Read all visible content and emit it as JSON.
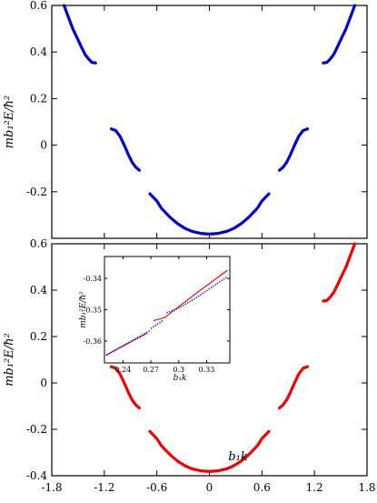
{
  "chart_data": [
    {
      "type": "scatter",
      "panel": "top",
      "ylabel": "mb₁²E/ħ²",
      "xlim": [
        -1.8,
        1.8
      ],
      "ylim": [
        -0.4,
        0.6
      ],
      "xticks": [
        -1.8,
        -1.2,
        -0.6,
        0,
        0.6,
        1.2,
        1.8
      ],
      "yticks": [
        -0.4,
        -0.2,
        0,
        0.2,
        0.4,
        0.6
      ],
      "ytick_labels": [
        "",
        "-0.2",
        "0",
        "0.2",
        "0.4",
        "0.6"
      ],
      "series": [
        {
          "color": "#0000cc",
          "segments": [
            [
              [
                -0.68,
                -0.209
              ],
              [
                -0.6,
                -0.24
              ],
              [
                -0.55,
                -0.27
              ],
              [
                -0.5,
                -0.29
              ],
              [
                -0.44,
                -0.313
              ],
              [
                -0.36,
                -0.338
              ],
              [
                -0.28,
                -0.357
              ],
              [
                -0.2,
                -0.37
              ],
              [
                -0.1,
                -0.379
              ],
              [
                0,
                -0.382
              ],
              [
                0.1,
                -0.379
              ],
              [
                0.2,
                -0.37
              ],
              [
                0.28,
                -0.357
              ],
              [
                0.36,
                -0.338
              ],
              [
                0.44,
                -0.313
              ],
              [
                0.5,
                -0.29
              ],
              [
                0.55,
                -0.27
              ],
              [
                0.6,
                -0.24
              ],
              [
                0.68,
                -0.209
              ]
            ],
            [
              [
                -1.12,
                0.07
              ],
              [
                -1.07,
                0.063
              ],
              [
                -1.02,
                0.038
              ],
              [
                -0.97,
                -0.002
              ],
              [
                -0.92,
                -0.045
              ],
              [
                -0.88,
                -0.075
              ],
              [
                -0.84,
                -0.095
              ],
              [
                -0.8,
                -0.108
              ]
            ],
            [
              [
                0.8,
                -0.108
              ],
              [
                0.84,
                -0.095
              ],
              [
                0.88,
                -0.075
              ],
              [
                0.92,
                -0.045
              ],
              [
                0.97,
                -0.002
              ],
              [
                1.02,
                0.038
              ],
              [
                1.07,
                0.063
              ],
              [
                1.12,
                0.07
              ]
            ],
            [
              [
                -1.66,
                0.6
              ],
              [
                -1.61,
                0.55
              ],
              [
                -1.56,
                0.5
              ],
              [
                -1.51,
                0.46
              ],
              [
                -1.46,
                0.42
              ],
              [
                -1.42,
                0.39
              ],
              [
                -1.38,
                0.37
              ],
              [
                -1.34,
                0.355
              ],
              [
                -1.3,
                0.353
              ]
            ],
            [
              [
                1.3,
                0.353
              ],
              [
                1.34,
                0.355
              ],
              [
                1.38,
                0.37
              ],
              [
                1.42,
                0.39
              ],
              [
                1.46,
                0.42
              ],
              [
                1.51,
                0.46
              ],
              [
                1.56,
                0.5
              ],
              [
                1.61,
                0.55
              ],
              [
                1.66,
                0.6
              ]
            ]
          ]
        }
      ]
    },
    {
      "type": "scatter",
      "panel": "bottom",
      "xlabel": "b₁k",
      "ylabel": "mb₁²E/ħ²",
      "xlim": [
        -1.8,
        1.8
      ],
      "ylim": [
        -0.4,
        0.6
      ],
      "xticks": [
        -1.8,
        -1.2,
        -0.6,
        0,
        0.6,
        1.2,
        1.8
      ],
      "xtick_labels": [
        "-1.8",
        "-1.2",
        "-0.6",
        "0",
        "0.6",
        "1.2",
        "1.8"
      ],
      "yticks": [
        -0.4,
        -0.2,
        0,
        0.2,
        0.4,
        0.6
      ],
      "ytick_labels": [
        "-0.4",
        "-0.2",
        "0",
        "0.2",
        "0.4",
        "0.6"
      ],
      "series": [
        {
          "color": "#ee0000",
          "segments": [
            [
              [
                -0.68,
                -0.209
              ],
              [
                -0.6,
                -0.24
              ],
              [
                -0.55,
                -0.27
              ],
              [
                -0.5,
                -0.29
              ],
              [
                -0.44,
                -0.313
              ],
              [
                -0.36,
                -0.338
              ],
              [
                -0.28,
                -0.357
              ],
              [
                -0.2,
                -0.37
              ],
              [
                -0.1,
                -0.379
              ],
              [
                0,
                -0.382
              ],
              [
                0.1,
                -0.379
              ],
              [
                0.2,
                -0.37
              ],
              [
                0.28,
                -0.357
              ],
              [
                0.36,
                -0.338
              ],
              [
                0.44,
                -0.313
              ],
              [
                0.5,
                -0.29
              ],
              [
                0.55,
                -0.27
              ],
              [
                0.6,
                -0.24
              ],
              [
                0.68,
                -0.209
              ]
            ],
            [
              [
                -1.12,
                0.07
              ],
              [
                -1.07,
                0.063
              ],
              [
                -1.02,
                0.038
              ],
              [
                -0.97,
                -0.002
              ],
              [
                -0.92,
                -0.045
              ],
              [
                -0.88,
                -0.075
              ],
              [
                -0.84,
                -0.095
              ],
              [
                -0.8,
                -0.108
              ]
            ],
            [
              [
                0.8,
                -0.108
              ],
              [
                0.84,
                -0.095
              ],
              [
                0.88,
                -0.075
              ],
              [
                0.92,
                -0.045
              ],
              [
                0.97,
                -0.002
              ],
              [
                1.02,
                0.038
              ],
              [
                1.07,
                0.063
              ],
              [
                1.12,
                0.07
              ]
            ],
            [
              [
                1.3,
                0.353
              ],
              [
                1.34,
                0.355
              ],
              [
                1.38,
                0.37
              ],
              [
                1.42,
                0.39
              ],
              [
                1.46,
                0.42
              ],
              [
                1.51,
                0.46
              ],
              [
                1.56,
                0.5
              ],
              [
                1.61,
                0.55
              ],
              [
                1.66,
                0.6
              ]
            ]
          ]
        }
      ]
    },
    {
      "type": "line",
      "panel": "inset",
      "xlabel": "b₁k",
      "ylabel": "mb₁²E/ħ²",
      "xlim": [
        0.22,
        0.355
      ],
      "ylim": [
        -0.367,
        -0.333
      ],
      "xticks": [
        0.24,
        0.27,
        0.3,
        0.33
      ],
      "xtick_labels": [
        "0.24",
        "0.27",
        "0.3",
        "0.33"
      ],
      "yticks": [
        -0.36,
        -0.35,
        -0.34
      ],
      "ytick_labels": [
        "-0.36",
        "-0.35",
        "-0.34"
      ],
      "series": [
        {
          "color": "#ee0000",
          "style": "solid",
          "segments": [
            [
              [
                0.222,
                -0.3645
              ],
              [
                0.266,
                -0.3575
              ]
            ],
            [
              [
                0.273,
                -0.3535
              ],
              [
                0.285,
                -0.3525
              ],
              [
                0.3,
                -0.349
              ],
              [
                0.32,
                -0.3445
              ],
              [
                0.352,
                -0.3375
              ]
            ]
          ]
        },
        {
          "color": "#0000cc",
          "style": "dotted",
          "segments": [
            [
              [
                0.222,
                -0.3645
              ],
              [
                0.27,
                -0.3565
              ]
            ],
            [
              [
                0.27,
                -0.356
              ],
              [
                0.283,
                -0.3535
              ]
            ],
            [
              [
                0.287,
                -0.351
              ],
              [
                0.3,
                -0.3495
              ],
              [
                0.32,
                -0.346
              ],
              [
                0.352,
                -0.3395
              ]
            ]
          ]
        }
      ]
    }
  ]
}
